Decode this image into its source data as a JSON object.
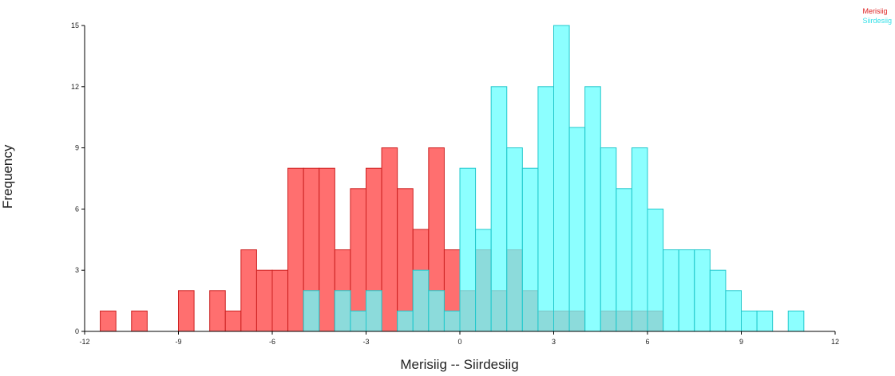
{
  "chart_data": {
    "type": "bar",
    "subtype": "overlapping-histogram",
    "title": "",
    "xlabel": "Merisiig -- Siirdesiig",
    "ylabel": "Frequency",
    "xlim": [
      -12,
      12
    ],
    "ylim": [
      0,
      15
    ],
    "x_ticks": [
      "-12",
      "-9",
      "-6",
      "-3",
      "0",
      "3",
      "6",
      "9",
      "12"
    ],
    "y_ticks": [
      "0",
      "3",
      "6",
      "9",
      "12",
      "15"
    ],
    "bin_width": 0.5,
    "legend_position": "top-right",
    "grid": false,
    "series": [
      {
        "name": "Merisiig",
        "color": "#ff6f6f",
        "edge": "#cc2020",
        "bins": [
          {
            "x0": -11.5,
            "count": 1
          },
          {
            "x0": -10.5,
            "count": 1
          },
          {
            "x0": -9.0,
            "count": 2
          },
          {
            "x0": -8.0,
            "count": 2
          },
          {
            "x0": -7.5,
            "count": 1
          },
          {
            "x0": -7.0,
            "count": 4
          },
          {
            "x0": -6.5,
            "count": 3
          },
          {
            "x0": -6.0,
            "count": 3
          },
          {
            "x0": -5.5,
            "count": 8
          },
          {
            "x0": -5.0,
            "count": 8
          },
          {
            "x0": -4.5,
            "count": 8
          },
          {
            "x0": -4.0,
            "count": 4
          },
          {
            "x0": -3.5,
            "count": 7
          },
          {
            "x0": -3.0,
            "count": 8
          },
          {
            "x0": -2.5,
            "count": 9
          },
          {
            "x0": -2.0,
            "count": 7
          },
          {
            "x0": -1.5,
            "count": 5
          },
          {
            "x0": -1.0,
            "count": 9
          },
          {
            "x0": -0.5,
            "count": 4
          },
          {
            "x0": 0.0,
            "count": 2
          },
          {
            "x0": 0.5,
            "count": 4
          },
          {
            "x0": 1.0,
            "count": 2
          },
          {
            "x0": 1.5,
            "count": 4
          },
          {
            "x0": 2.0,
            "count": 2
          },
          {
            "x0": 2.5,
            "count": 1
          },
          {
            "x0": 3.0,
            "count": 1
          },
          {
            "x0": 3.5,
            "count": 1
          },
          {
            "x0": 4.5,
            "count": 1
          },
          {
            "x0": 5.0,
            "count": 1
          },
          {
            "x0": 5.5,
            "count": 1
          },
          {
            "x0": 6.0,
            "count": 1
          }
        ]
      },
      {
        "name": "Siirdesiig",
        "color": "#66ffff",
        "edge": "#22c8cc",
        "bins": [
          {
            "x0": -5.0,
            "count": 2
          },
          {
            "x0": -4.0,
            "count": 2
          },
          {
            "x0": -3.5,
            "count": 1
          },
          {
            "x0": -3.0,
            "count": 2
          },
          {
            "x0": -2.0,
            "count": 1
          },
          {
            "x0": -1.5,
            "count": 3
          },
          {
            "x0": -1.0,
            "count": 2
          },
          {
            "x0": -0.5,
            "count": 1
          },
          {
            "x0": 0.0,
            "count": 8
          },
          {
            "x0": 0.5,
            "count": 5
          },
          {
            "x0": 1.0,
            "count": 12
          },
          {
            "x0": 1.5,
            "count": 9
          },
          {
            "x0": 2.0,
            "count": 8
          },
          {
            "x0": 2.5,
            "count": 12
          },
          {
            "x0": 3.0,
            "count": 15
          },
          {
            "x0": 3.5,
            "count": 10
          },
          {
            "x0": 4.0,
            "count": 12
          },
          {
            "x0": 4.5,
            "count": 9
          },
          {
            "x0": 5.0,
            "count": 7
          },
          {
            "x0": 5.5,
            "count": 9
          },
          {
            "x0": 6.0,
            "count": 6
          },
          {
            "x0": 6.5,
            "count": 4
          },
          {
            "x0": 7.0,
            "count": 4
          },
          {
            "x0": 7.5,
            "count": 4
          },
          {
            "x0": 8.0,
            "count": 3
          },
          {
            "x0": 8.5,
            "count": 2
          },
          {
            "x0": 9.0,
            "count": 1
          },
          {
            "x0": 9.5,
            "count": 1
          },
          {
            "x0": 10.5,
            "count": 1
          }
        ]
      }
    ]
  }
}
